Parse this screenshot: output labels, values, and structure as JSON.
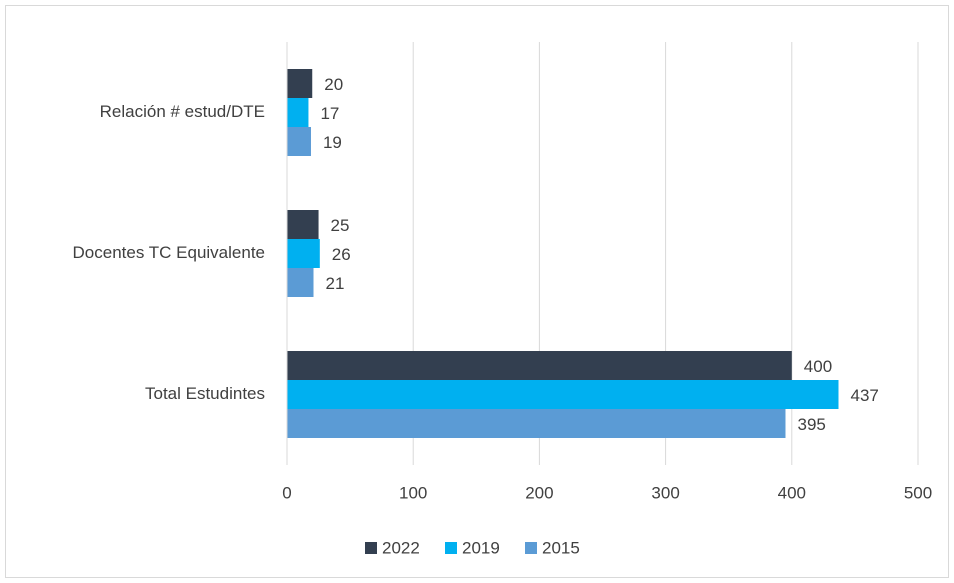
{
  "chart_data": {
    "type": "barh",
    "categories": [
      "Relación # estud/DTE",
      "Docentes TC Equivalente",
      "Total Estudintes"
    ],
    "series": [
      {
        "name": "2022",
        "color": "#333f50",
        "values": [
          20,
          25,
          400
        ]
      },
      {
        "name": "2019",
        "color": "#00b0f0",
        "values": [
          17,
          26,
          437
        ]
      },
      {
        "name": "2015",
        "color": "#5b9bd5",
        "values": [
          19,
          21,
          395
        ]
      }
    ],
    "xlim": [
      0,
      500
    ],
    "xticks": [
      0,
      100,
      200,
      300,
      400,
      500
    ],
    "grid": true,
    "legend": "bottom"
  }
}
